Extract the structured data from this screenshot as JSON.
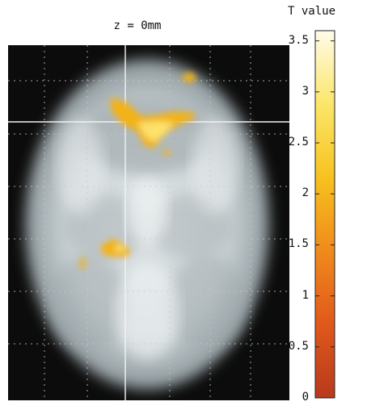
{
  "figure": {
    "title": "z = 0mm",
    "colorbar_title": "T value"
  },
  "colorbar": {
    "ticks": [
      {
        "value": 0,
        "label": "0"
      },
      {
        "value": 0.5,
        "label": "0.5"
      },
      {
        "value": 1,
        "label": "1"
      },
      {
        "value": 1.5,
        "label": "1.5"
      },
      {
        "value": 2,
        "label": "2"
      },
      {
        "value": 2.5,
        "label": "2.5"
      },
      {
        "value": 3,
        "label": "3"
      },
      {
        "value": 3.5,
        "label": "3.5"
      }
    ],
    "min": 0,
    "max": 3.6,
    "colors": [
      "#b83a1c",
      "#e0581c",
      "#f08a1c",
      "#f7c21e",
      "#fbe66a",
      "#fffbe8"
    ]
  }
}
